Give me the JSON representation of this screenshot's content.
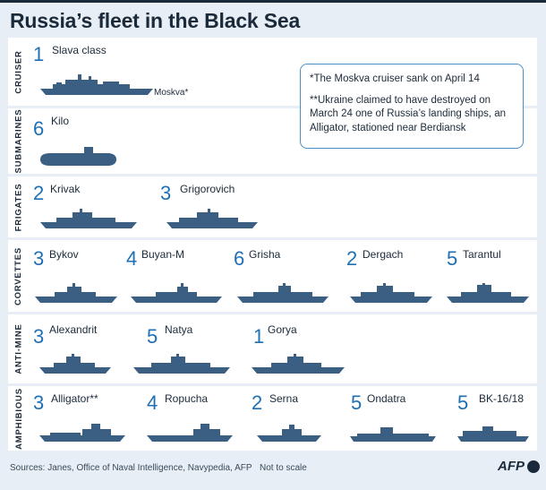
{
  "title": "Russia’s fleet in the Black Sea",
  "note": {
    "line1": "*The Moskva cruiser sank on April 14",
    "line2": "**Ukraine claimed to have destroyed on March 24 one of Russia’s landing ships, an Alligator, stationed near Berdiansk"
  },
  "moskva_label": "Moskva*",
  "categories": [
    {
      "label": "CRUISER",
      "ships": [
        {
          "count": "1",
          "name": "Slava class"
        }
      ]
    },
    {
      "label": "SUBMARINES",
      "ships": [
        {
          "count": "6",
          "name": "Kilo"
        }
      ]
    },
    {
      "label": "FRIGATES",
      "ships": [
        {
          "count": "2",
          "name": "Krivak"
        },
        {
          "count": "3",
          "name": "Grigorovich"
        }
      ]
    },
    {
      "label": "CORVETTES",
      "ships": [
        {
          "count": "3",
          "name": "Bykov"
        },
        {
          "count": "4",
          "name": "Buyan-M"
        },
        {
          "count": "6",
          "name": "Grisha"
        },
        {
          "count": "2",
          "name": "Dergach"
        },
        {
          "count": "5",
          "name": "Tarantul"
        }
      ]
    },
    {
      "label": "ANTI-MINE",
      "ships": [
        {
          "count": "3",
          "name": "Alexandrit"
        },
        {
          "count": "5",
          "name": "Natya"
        },
        {
          "count": "1",
          "name": "Gorya"
        }
      ]
    },
    {
      "label": "AMPHIBIOUS",
      "ships": [
        {
          "count": "3",
          "name": "Alligator**"
        },
        {
          "count": "4",
          "name": "Ropucha"
        },
        {
          "count": "2",
          "name": "Serna"
        },
        {
          "count": "5",
          "name": "Ondatra"
        },
        {
          "count": "5",
          "name": "BK-16/18"
        }
      ]
    }
  ],
  "footer": {
    "sources": "Sources: Janes, Office of Naval Intelligence, Navypedia, AFP",
    "scale_note": "Not to scale",
    "agency": "AFP"
  },
  "colors": {
    "accent": "#1f6fb5",
    "ship": "#3a5f82",
    "background": "#e7eef5"
  }
}
